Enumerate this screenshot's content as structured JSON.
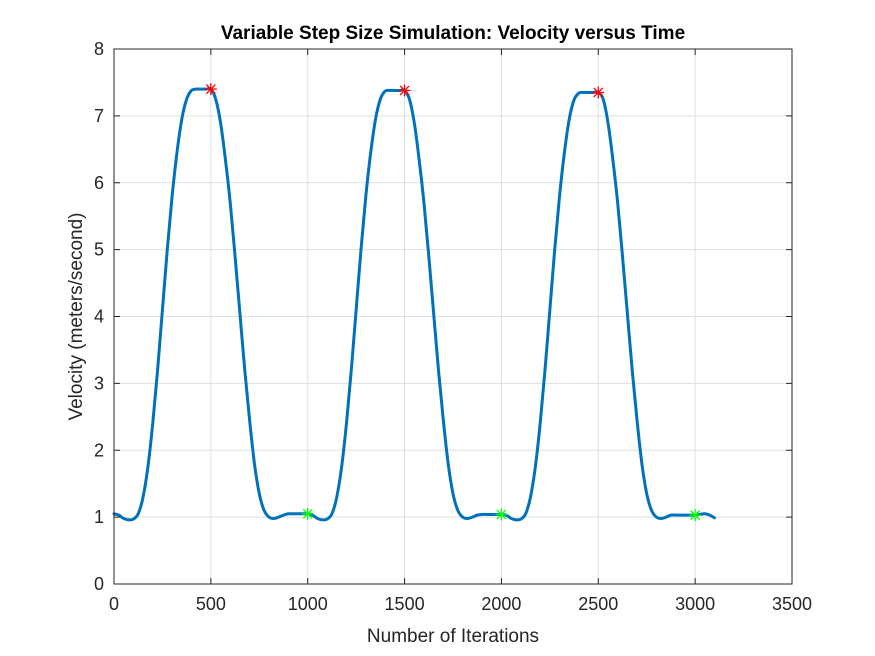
{
  "chart_data": {
    "type": "line",
    "title": "Variable Step Size Simulation: Velocity versus Time",
    "xlabel": "Number of Iterations",
    "ylabel": "Velocity (meters/second)",
    "xlim": [
      0,
      3500
    ],
    "ylim": [
      0,
      8
    ],
    "xticks": [
      0,
      500,
      1000,
      1500,
      2000,
      2500,
      3000,
      3500
    ],
    "yticks": [
      0,
      1,
      2,
      3,
      4,
      5,
      6,
      7,
      8
    ],
    "grid": true,
    "legend": "none",
    "series": [
      {
        "color": "#0072bd",
        "x": [
          0,
          25,
          50,
          75,
          100,
          125,
          150,
          175,
          200,
          225,
          250,
          275,
          300,
          325,
          350,
          375,
          400,
          425,
          450,
          475,
          500,
          525,
          550,
          575,
          600,
          625,
          650,
          675,
          700,
          725,
          750,
          775,
          800,
          825,
          850,
          875,
          900,
          925,
          950,
          975,
          1000,
          1025,
          1050,
          1075,
          1100,
          1125,
          1150,
          1175,
          1200,
          1225,
          1250,
          1275,
          1300,
          1325,
          1350,
          1375,
          1400,
          1425,
          1450,
          1475,
          1500,
          1525,
          1550,
          1575,
          1600,
          1625,
          1650,
          1675,
          1700,
          1725,
          1750,
          1775,
          1800,
          1825,
          1850,
          1875,
          1900,
          1925,
          1950,
          1975,
          2000,
          2025,
          2050,
          2075,
          2100,
          2125,
          2150,
          2175,
          2200,
          2225,
          2250,
          2275,
          2300,
          2325,
          2350,
          2375,
          2400,
          2425,
          2450,
          2475,
          2500,
          2525,
          2550,
          2575,
          2600,
          2625,
          2650,
          2675,
          2700,
          2725,
          2750,
          2775,
          2800,
          2825,
          2850,
          2875,
          2900,
          2925,
          2950,
          2975,
          3000,
          3025,
          3050,
          3075,
          3100
        ],
        "y": [
          1.05,
          1.03,
          0.98,
          0.96,
          0.97,
          1.05,
          1.3,
          1.75,
          2.4,
          3.2,
          4.1,
          5.0,
          5.8,
          6.45,
          6.95,
          7.25,
          7.38,
          7.4,
          7.4,
          7.4,
          7.4,
          7.25,
          6.9,
          6.35,
          5.7,
          4.9,
          4.05,
          3.2,
          2.45,
          1.8,
          1.35,
          1.1,
          1.0,
          0.98,
          1.0,
          1.03,
          1.05,
          1.05,
          1.05,
          1.05,
          1.05,
          1.03,
          0.98,
          0.96,
          0.97,
          1.05,
          1.3,
          1.75,
          2.4,
          3.2,
          4.1,
          5.0,
          5.8,
          6.45,
          6.95,
          7.25,
          7.37,
          7.38,
          7.38,
          7.38,
          7.38,
          7.25,
          6.9,
          6.35,
          5.7,
          4.9,
          4.05,
          3.2,
          2.45,
          1.8,
          1.35,
          1.1,
          1.0,
          0.98,
          1.0,
          1.03,
          1.04,
          1.04,
          1.04,
          1.04,
          1.04,
          1.03,
          0.98,
          0.96,
          0.97,
          1.05,
          1.3,
          1.75,
          2.4,
          3.2,
          4.1,
          5.0,
          5.8,
          6.45,
          6.95,
          7.24,
          7.34,
          7.35,
          7.35,
          7.35,
          7.35,
          7.25,
          6.9,
          6.35,
          5.7,
          4.9,
          4.05,
          3.2,
          2.45,
          1.8,
          1.35,
          1.1,
          1.0,
          0.98,
          1.0,
          1.03,
          1.03,
          1.03,
          1.03,
          1.03,
          1.03,
          1.04,
          1.05,
          1.03,
          0.99
        ]
      }
    ],
    "markers": [
      {
        "kind": "max",
        "color": "#ff0000",
        "points": [
          [
            500,
            7.4
          ],
          [
            1500,
            7.38
          ],
          [
            2500,
            7.35
          ]
        ]
      },
      {
        "kind": "min",
        "color": "#00ff00",
        "points": [
          [
            1000,
            1.05
          ],
          [
            2000,
            1.04
          ],
          [
            3000,
            1.03
          ]
        ]
      }
    ]
  }
}
